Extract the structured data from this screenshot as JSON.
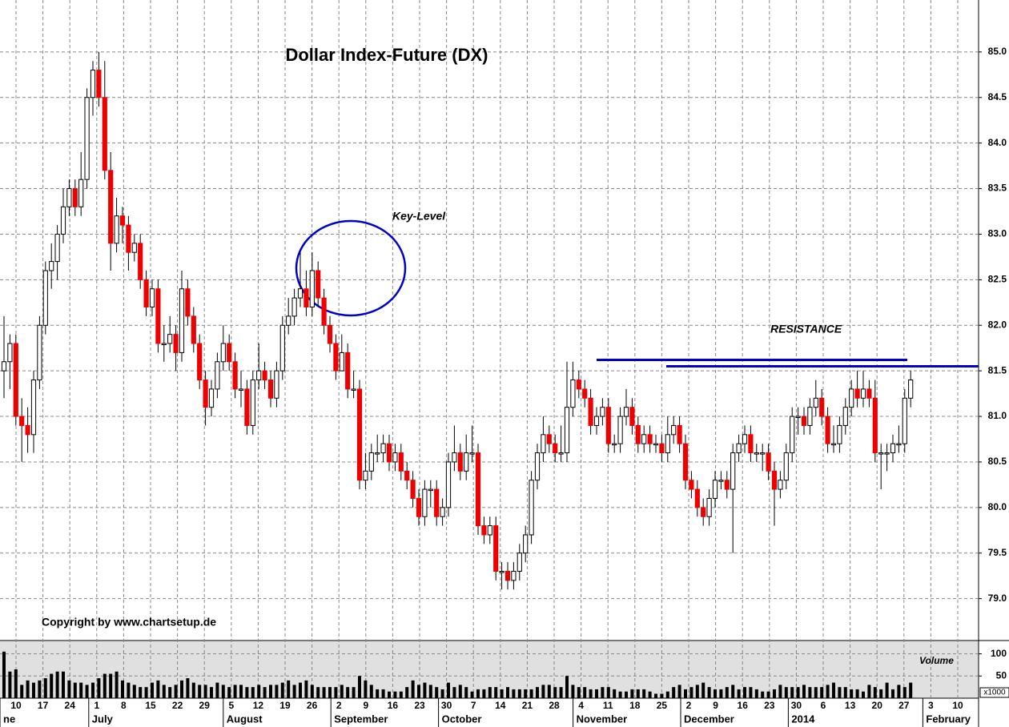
{
  "chart_data": [
    {
      "type": "candlestick",
      "title": "Dollar Index-Future (DX)",
      "annotations": [
        "Key-Level",
        "RESISTANCE",
        "Copyright by www.chartsetup.de"
      ],
      "resistance_levels": [
        81.62,
        81.55
      ],
      "resistance_color": "#0000cc",
      "up_color": "#ffffff",
      "down_color": "#ee0000",
      "x_week_labels": [
        "10",
        "17",
        "24",
        "1",
        "8",
        "15",
        "22",
        "29",
        "5",
        "12",
        "19",
        "26",
        "2",
        "9",
        "16",
        "23",
        "30",
        "7",
        "14",
        "21",
        "28",
        "4",
        "11",
        "18",
        "25",
        "2",
        "9",
        "16",
        "23",
        "30",
        "6",
        "13",
        "20",
        "27",
        "3",
        "10"
      ],
      "x_month_labels": [
        "ne",
        "July",
        "August",
        "September",
        "October",
        "November",
        "December",
        "2014",
        "February"
      ],
      "ylim": [
        78.54,
        85.57
      ],
      "yticks": [
        {
          "value": 79,
          "label": "79.0"
        },
        79.5,
        {
          "value": 80,
          "label": "80.0"
        },
        80.5,
        {
          "value": 81,
          "label": "81.0"
        },
        81.5,
        {
          "value": 82,
          "label": "82.0"
        },
        82.5,
        {
          "value": 83,
          "label": "83.0"
        },
        83.5,
        {
          "value": 84,
          "label": "84.0"
        },
        84.5,
        {
          "value": 85,
          "label": "85.0"
        }
      ],
      "grid": true,
      "ohlc": [
        [
          81.5,
          82.1,
          81.2,
          81.6
        ],
        [
          81.6,
          81.9,
          81.3,
          81.8
        ],
        [
          81.8,
          81.9,
          80.9,
          81.0
        ],
        [
          81.0,
          81.2,
          80.5,
          80.9
        ],
        [
          80.9,
          81.1,
          80.6,
          80.8
        ],
        [
          80.8,
          81.5,
          80.6,
          81.4
        ],
        [
          81.4,
          82.1,
          81.3,
          82.0
        ],
        [
          82.0,
          82.7,
          81.9,
          82.6
        ],
        [
          82.6,
          82.9,
          82.4,
          82.7
        ],
        [
          82.7,
          83.1,
          82.5,
          83.0
        ],
        [
          83.0,
          83.5,
          82.9,
          83.3
        ],
        [
          83.3,
          83.6,
          83.2,
          83.5
        ],
        [
          83.5,
          83.6,
          83.2,
          83.3
        ],
        [
          83.3,
          83.9,
          83.2,
          83.6
        ],
        [
          83.6,
          84.6,
          83.5,
          84.5
        ],
        [
          84.5,
          84.9,
          84.3,
          84.8
        ],
        [
          84.8,
          85.0,
          84.4,
          84.5
        ],
        [
          84.5,
          84.9,
          83.6,
          83.7
        ],
        [
          83.7,
          83.9,
          82.6,
          82.9
        ],
        [
          82.9,
          83.4,
          82.8,
          83.2
        ],
        [
          83.2,
          83.3,
          82.9,
          83.1
        ],
        [
          83.1,
          83.2,
          82.6,
          82.8
        ],
        [
          82.8,
          83.0,
          82.7,
          82.9
        ],
        [
          82.9,
          83.0,
          82.4,
          82.5
        ],
        [
          82.5,
          82.6,
          82.1,
          82.2
        ],
        [
          82.2,
          82.5,
          82.1,
          82.4
        ],
        [
          82.4,
          82.5,
          81.7,
          81.8
        ],
        [
          81.8,
          82.0,
          81.6,
          81.8
        ],
        [
          81.8,
          82.1,
          81.7,
          81.9
        ],
        [
          81.9,
          82.0,
          81.5,
          81.7
        ],
        [
          81.7,
          82.6,
          81.6,
          82.4
        ],
        [
          82.4,
          82.5,
          82.0,
          82.1
        ],
        [
          82.1,
          82.2,
          81.7,
          81.8
        ],
        [
          81.8,
          81.9,
          81.3,
          81.4
        ],
        [
          81.4,
          81.5,
          80.9,
          81.1
        ],
        [
          81.1,
          81.4,
          81.0,
          81.3
        ],
        [
          81.3,
          81.7,
          81.2,
          81.6
        ],
        [
          81.6,
          82.0,
          81.5,
          81.8
        ],
        [
          81.8,
          81.9,
          81.5,
          81.6
        ],
        [
          81.6,
          81.7,
          81.2,
          81.3
        ],
        [
          81.3,
          81.5,
          81.1,
          81.3
        ],
        [
          81.3,
          81.4,
          80.8,
          80.9
        ],
        [
          80.9,
          81.5,
          80.8,
          81.4
        ],
        [
          81.4,
          81.8,
          81.3,
          81.5
        ],
        [
          81.5,
          81.6,
          81.3,
          81.4
        ],
        [
          81.4,
          81.5,
          81.1,
          81.2
        ],
        [
          81.2,
          81.6,
          81.1,
          81.5
        ],
        [
          81.5,
          82.1,
          81.4,
          82.0
        ],
        [
          82.0,
          82.3,
          81.9,
          82.1
        ],
        [
          82.1,
          82.4,
          82.0,
          82.3
        ],
        [
          82.3,
          82.8,
          82.2,
          82.4
        ],
        [
          82.4,
          82.6,
          82.1,
          82.2
        ],
        [
          82.2,
          82.8,
          82.1,
          82.6
        ],
        [
          82.6,
          82.7,
          82.2,
          82.3
        ],
        [
          82.3,
          82.4,
          81.9,
          82.0
        ],
        [
          82.0,
          82.1,
          81.7,
          81.8
        ],
        [
          81.8,
          81.9,
          81.4,
          81.5
        ],
        [
          81.5,
          81.9,
          81.5,
          81.7
        ],
        [
          81.7,
          81.8,
          81.2,
          81.3
        ],
        [
          81.3,
          81.5,
          81.2,
          81.3
        ],
        [
          81.3,
          81.4,
          80.2,
          80.3
        ],
        [
          80.3,
          80.6,
          80.2,
          80.4
        ],
        [
          80.4,
          80.7,
          80.3,
          80.6
        ],
        [
          80.6,
          80.8,
          80.5,
          80.6
        ],
        [
          80.6,
          80.8,
          80.5,
          80.7
        ],
        [
          80.7,
          80.8,
          80.4,
          80.5
        ],
        [
          80.5,
          80.7,
          80.4,
          80.6
        ],
        [
          80.6,
          80.7,
          80.3,
          80.4
        ],
        [
          80.4,
          80.5,
          80.2,
          80.3
        ],
        [
          80.3,
          80.4,
          80.0,
          80.1
        ],
        [
          80.1,
          80.2,
          79.8,
          79.9
        ],
        [
          79.9,
          80.3,
          79.8,
          80.2
        ],
        [
          80.2,
          80.3,
          80.0,
          80.2
        ],
        [
          80.2,
          80.3,
          79.8,
          79.9
        ],
        [
          79.9,
          80.1,
          79.8,
          80.0
        ],
        [
          80.0,
          80.6,
          79.9,
          80.5
        ],
        [
          80.5,
          80.9,
          80.4,
          80.6
        ],
        [
          80.6,
          80.7,
          80.3,
          80.4
        ],
        [
          80.4,
          80.8,
          80.3,
          80.6
        ],
        [
          80.6,
          80.9,
          80.5,
          80.6
        ],
        [
          80.6,
          80.7,
          79.7,
          79.8
        ],
        [
          79.8,
          79.9,
          79.6,
          79.7
        ],
        [
          79.7,
          79.9,
          79.6,
          79.8
        ],
        [
          79.8,
          79.9,
          79.2,
          79.3
        ],
        [
          79.3,
          79.4,
          79.1,
          79.3
        ],
        [
          79.3,
          79.4,
          79.1,
          79.2
        ],
        [
          79.2,
          79.4,
          79.1,
          79.3
        ],
        [
          79.3,
          79.6,
          79.2,
          79.5
        ],
        [
          79.5,
          79.8,
          79.4,
          79.7
        ],
        [
          79.7,
          80.4,
          79.6,
          80.3
        ],
        [
          80.3,
          80.7,
          80.2,
          80.6
        ],
        [
          80.6,
          81.0,
          80.5,
          80.8
        ],
        [
          80.8,
          80.9,
          80.6,
          80.7
        ],
        [
          80.7,
          80.8,
          80.5,
          80.6
        ],
        [
          80.6,
          80.9,
          80.5,
          80.6
        ],
        [
          80.6,
          81.6,
          80.5,
          81.1
        ],
        [
          81.1,
          81.6,
          81.0,
          81.4
        ],
        [
          81.4,
          81.5,
          81.2,
          81.3
        ],
        [
          81.3,
          81.4,
          81.1,
          81.2
        ],
        [
          81.2,
          81.3,
          80.8,
          80.9
        ],
        [
          80.9,
          81.1,
          80.8,
          81.0
        ],
        [
          81.0,
          81.2,
          80.9,
          81.1
        ],
        [
          81.1,
          81.2,
          80.6,
          80.7
        ],
        [
          80.7,
          80.8,
          80.6,
          80.7
        ],
        [
          80.7,
          81.1,
          80.6,
          81.0
        ],
        [
          81.0,
          81.3,
          80.9,
          81.1
        ],
        [
          81.1,
          81.2,
          80.8,
          80.9
        ],
        [
          80.9,
          81.0,
          80.6,
          80.7
        ],
        [
          80.7,
          80.9,
          80.6,
          80.8
        ],
        [
          80.8,
          80.9,
          80.6,
          80.7
        ],
        [
          80.7,
          80.8,
          80.6,
          80.7
        ],
        [
          80.7,
          80.8,
          80.5,
          80.6
        ],
        [
          80.6,
          81.0,
          80.5,
          80.8
        ],
        [
          80.8,
          81.0,
          80.7,
          80.9
        ],
        [
          80.9,
          81.0,
          80.6,
          80.7
        ],
        [
          80.7,
          80.8,
          80.2,
          80.3
        ],
        [
          80.3,
          80.4,
          80.1,
          80.2
        ],
        [
          80.2,
          80.3,
          79.9,
          80.0
        ],
        [
          80.0,
          80.1,
          79.8,
          79.9
        ],
        [
          79.9,
          80.2,
          79.8,
          80.1
        ],
        [
          80.1,
          80.4,
          80.0,
          80.3
        ],
        [
          80.3,
          80.4,
          80.2,
          80.3
        ],
        [
          80.3,
          80.4,
          80.1,
          80.2
        ],
        [
          80.2,
          80.7,
          79.5,
          80.6
        ],
        [
          80.6,
          80.8,
          80.5,
          80.7
        ],
        [
          80.7,
          80.9,
          80.6,
          80.8
        ],
        [
          80.8,
          80.9,
          80.5,
          80.6
        ],
        [
          80.6,
          80.7,
          80.5,
          80.6
        ],
        [
          80.6,
          80.7,
          80.4,
          80.6
        ],
        [
          80.6,
          80.7,
          80.3,
          80.4
        ],
        [
          80.4,
          80.5,
          79.8,
          80.2
        ],
        [
          80.2,
          80.4,
          80.1,
          80.3
        ],
        [
          80.3,
          80.7,
          80.2,
          80.6
        ],
        [
          80.6,
          81.1,
          80.5,
          81.0
        ],
        [
          81.0,
          81.1,
          80.8,
          81.0
        ],
        [
          81.0,
          81.1,
          80.8,
          80.9
        ],
        [
          80.9,
          81.2,
          80.8,
          81.1
        ],
        [
          81.1,
          81.4,
          81.0,
          81.2
        ],
        [
          81.2,
          81.3,
          80.9,
          81.0
        ],
        [
          81.0,
          81.1,
          80.6,
          80.7
        ],
        [
          80.7,
          80.9,
          80.6,
          80.7
        ],
        [
          80.7,
          81.0,
          80.6,
          80.9
        ],
        [
          80.9,
          81.2,
          80.8,
          81.1
        ],
        [
          81.1,
          81.4,
          81.0,
          81.3
        ],
        [
          81.3,
          81.5,
          81.1,
          81.2
        ],
        [
          81.2,
          81.5,
          81.1,
          81.3
        ],
        [
          81.3,
          81.4,
          81.1,
          81.2
        ],
        [
          81.2,
          81.4,
          80.5,
          80.6
        ],
        [
          80.6,
          80.7,
          80.2,
          80.6
        ],
        [
          80.6,
          80.7,
          80.4,
          80.6
        ],
        [
          80.6,
          80.8,
          80.5,
          80.7
        ],
        [
          80.7,
          80.9,
          80.6,
          80.7
        ],
        [
          80.7,
          81.3,
          80.6,
          81.2
        ],
        [
          81.2,
          81.5,
          81.1,
          81.4
        ]
      ]
    },
    {
      "type": "bar",
      "title": "Volume",
      "unit_label": "x1000",
      "color": "#000000",
      "ylim": [
        0,
        130
      ],
      "yticks": [
        50,
        100
      ],
      "values": [
        105,
        60,
        65,
        30,
        40,
        35,
        40,
        45,
        55,
        60,
        60,
        40,
        35,
        35,
        30,
        35,
        45,
        55,
        55,
        60,
        40,
        35,
        30,
        25,
        25,
        35,
        40,
        30,
        25,
        30,
        40,
        45,
        35,
        30,
        30,
        25,
        35,
        30,
        25,
        30,
        30,
        25,
        25,
        30,
        25,
        30,
        30,
        35,
        40,
        30,
        35,
        40,
        30,
        25,
        25,
        25,
        25,
        30,
        25,
        25,
        50,
        40,
        30,
        20,
        20,
        15,
        15,
        15,
        25,
        40,
        30,
        35,
        30,
        25,
        20,
        35,
        25,
        30,
        25,
        15,
        20,
        20,
        25,
        25,
        20,
        25,
        20,
        20,
        20,
        20,
        25,
        30,
        30,
        25,
        25,
        50,
        30,
        25,
        25,
        20,
        20,
        25,
        25,
        20,
        15,
        15,
        20,
        20,
        20,
        15,
        10,
        10,
        15,
        25,
        30,
        20,
        25,
        30,
        35,
        25,
        20,
        20,
        25,
        30,
        20,
        25,
        25,
        20,
        15,
        15,
        20,
        30,
        25,
        25,
        25,
        30,
        25,
        25,
        25,
        30,
        35,
        25,
        25,
        20,
        20,
        15,
        30,
        25,
        20,
        35,
        20,
        30,
        25,
        35
      ]
    }
  ]
}
